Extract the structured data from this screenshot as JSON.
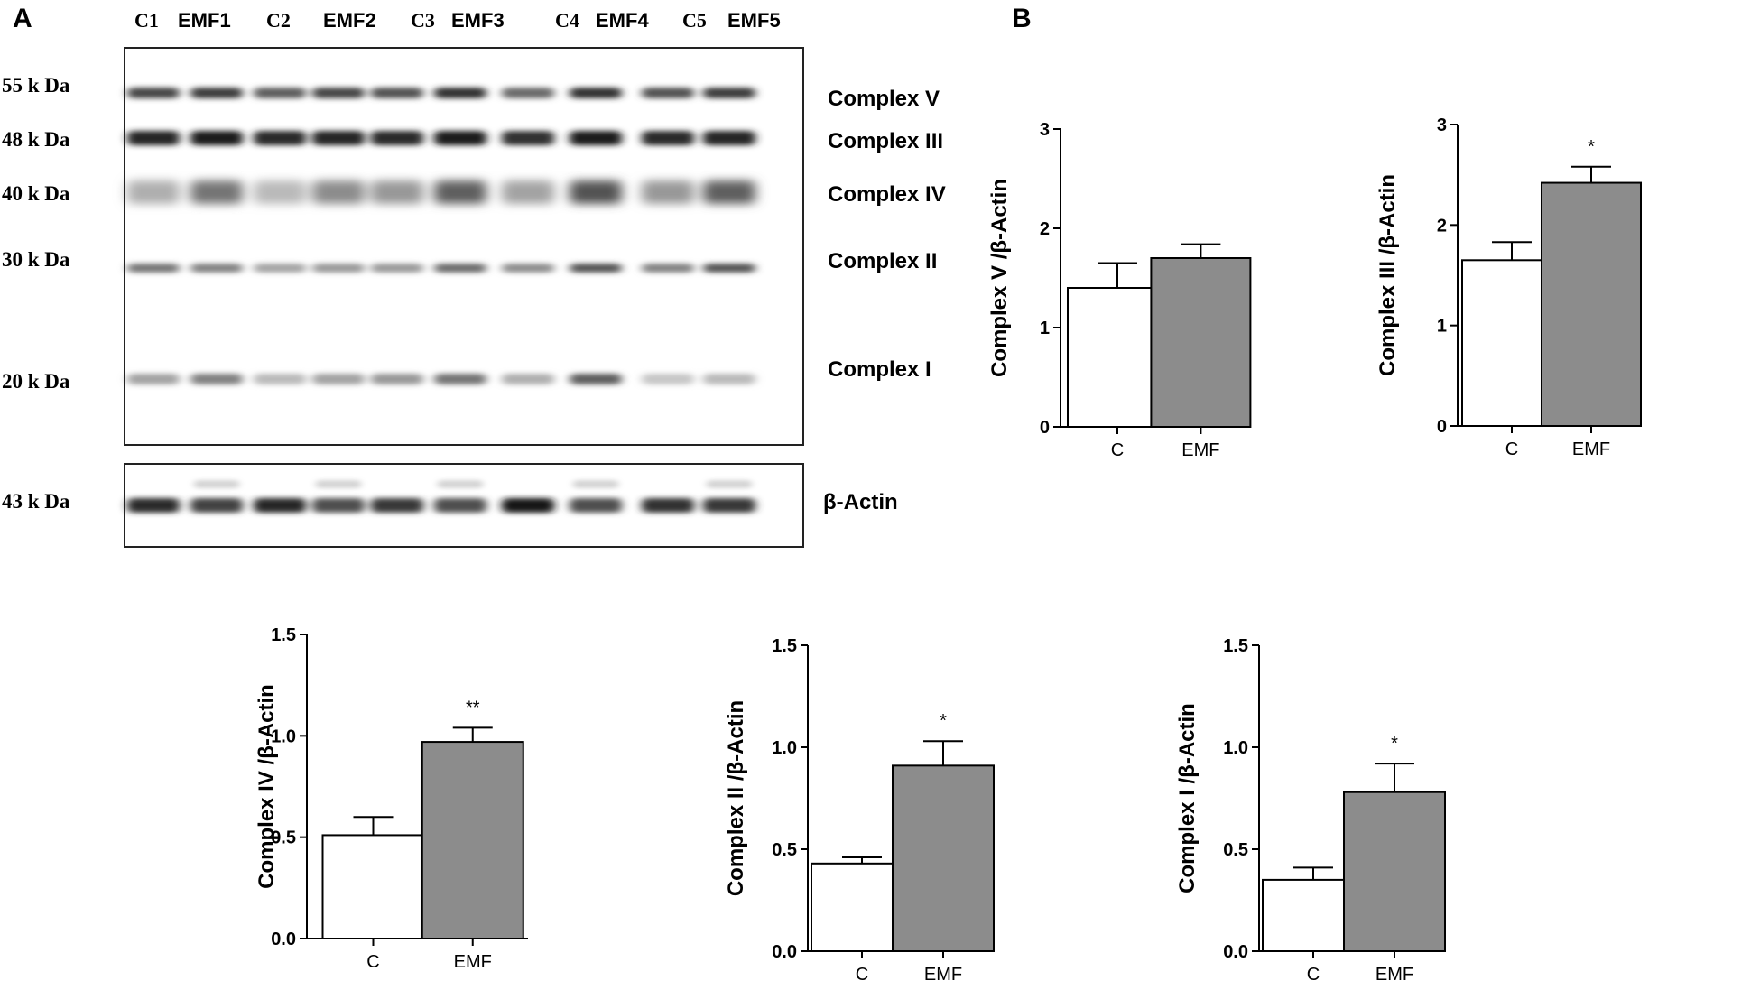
{
  "panel_labels": {
    "a": "A",
    "b": "B"
  },
  "blot": {
    "lanes": [
      "C1",
      "EMF1",
      "C2",
      "EMF2",
      "C3",
      "EMF3",
      "C4",
      "EMF4",
      "C5",
      "EMF5"
    ],
    "mw_markers": [
      "55 k Da",
      "48 k Da",
      "40 k Da",
      "30 k Da",
      "20 k Da",
      "43 k Da"
    ],
    "complex_labels": [
      "Complex V",
      "Complex III",
      "Complex IV",
      "Complex II",
      "Complex I"
    ],
    "actin_label": "β-Actin"
  },
  "chart_data": [
    {
      "type": "bar",
      "categories": [
        "C",
        "EMF"
      ],
      "values": [
        1.4,
        1.7
      ],
      "errors": [
        0.25,
        0.14
      ],
      "significance": [
        "",
        ""
      ],
      "ylabel": "Complex V /β-Actin",
      "ylim": [
        0,
        3
      ],
      "yticks": [
        "0",
        "1",
        "2",
        "3"
      ],
      "colors": [
        "#ffffff",
        "#8c8c8c"
      ]
    },
    {
      "type": "bar",
      "categories": [
        "C",
        "EMF"
      ],
      "values": [
        1.65,
        2.42
      ],
      "errors": [
        0.18,
        0.16
      ],
      "significance": [
        "",
        "*"
      ],
      "ylabel": "Complex III /β-Actin",
      "ylim": [
        0,
        3
      ],
      "yticks": [
        "0",
        "1",
        "2",
        "3"
      ],
      "colors": [
        "#ffffff",
        "#8c8c8c"
      ]
    },
    {
      "type": "bar",
      "categories": [
        "C",
        "EMF"
      ],
      "values": [
        0.51,
        0.97
      ],
      "errors": [
        0.09,
        0.07
      ],
      "significance": [
        "",
        "**"
      ],
      "ylabel": "Complex IV /β-Actin",
      "ylim": [
        0,
        1.5
      ],
      "yticks": [
        "0.0",
        "0.5",
        "1.0",
        "1.5"
      ],
      "colors": [
        "#ffffff",
        "#8c8c8c"
      ]
    },
    {
      "type": "bar",
      "categories": [
        "C",
        "EMF"
      ],
      "values": [
        0.43,
        0.91
      ],
      "errors": [
        0.03,
        0.12
      ],
      "significance": [
        "",
        "*"
      ],
      "ylabel": "Complex II /β-Actin",
      "ylim": [
        0,
        1.5
      ],
      "yticks": [
        "0.0",
        "0.5",
        "1.0",
        "1.5"
      ],
      "colors": [
        "#ffffff",
        "#8c8c8c"
      ]
    },
    {
      "type": "bar",
      "categories": [
        "C",
        "EMF"
      ],
      "values": [
        0.35,
        0.78
      ],
      "errors": [
        0.06,
        0.14
      ],
      "significance": [
        "",
        "*"
      ],
      "ylabel": "Complex I /β-Actin",
      "ylim": [
        0,
        1.5
      ],
      "yticks": [
        "0.0",
        "0.5",
        "1.0",
        "1.5"
      ],
      "colors": [
        "#ffffff",
        "#8c8c8c"
      ]
    }
  ]
}
